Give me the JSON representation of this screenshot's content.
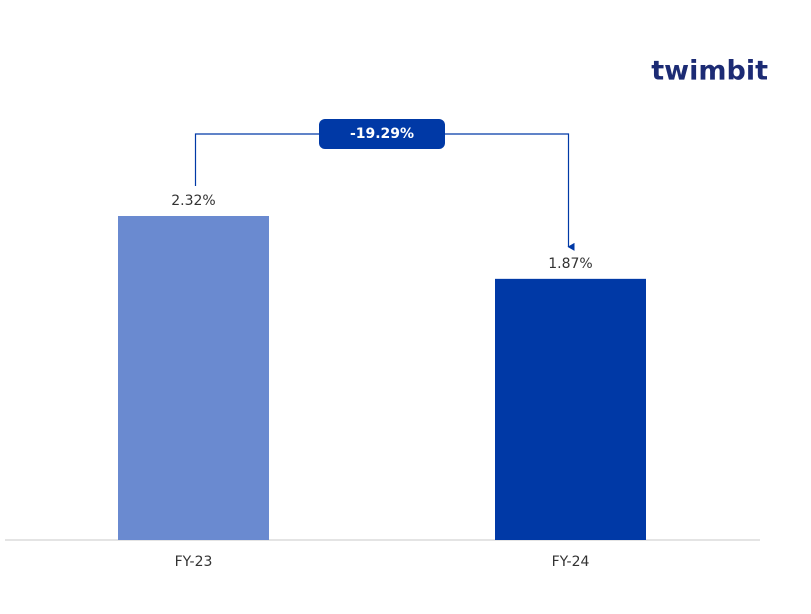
{
  "chart_data": {
    "type": "bar",
    "categories": [
      "FY-23",
      "FY-24"
    ],
    "values": [
      2.32,
      1.87
    ],
    "value_labels": [
      "2.32%",
      "1.87%"
    ],
    "colors": [
      "#6a8ad0",
      "#0039a6"
    ],
    "annotation": "-19.29%"
  },
  "logo": "twimbit"
}
